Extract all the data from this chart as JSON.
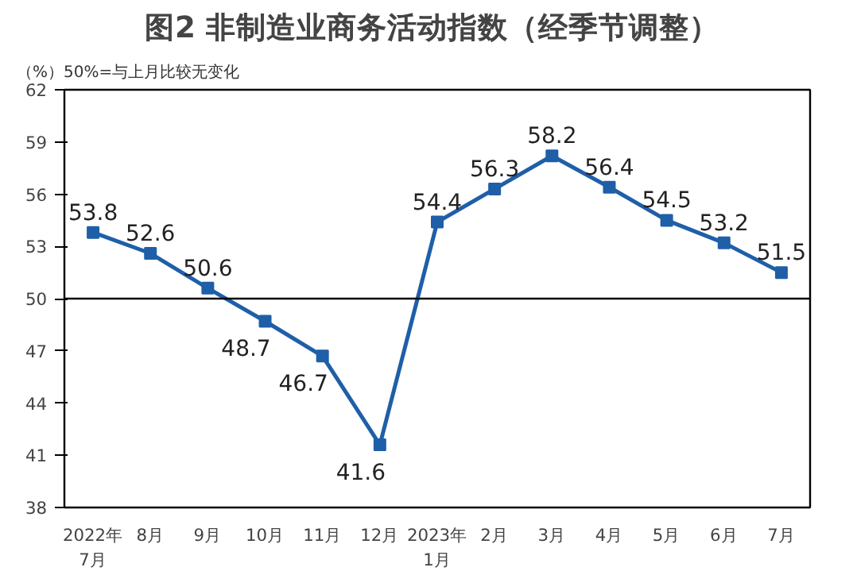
{
  "chart_data": {
    "type": "line",
    "title": "图2  非制造业商务活动指数（经季节调整）",
    "ylabel": "（%）50%=与上月比较无变化",
    "categories": [
      "2022年\n7月",
      "8月",
      "9月",
      "10月",
      "11月",
      "12月",
      "2023年\n1月",
      "2月",
      "3月",
      "4月",
      "5月",
      "6月",
      "7月"
    ],
    "series": [
      {
        "color": "#1f5fa8",
        "values": [
          53.8,
          52.6,
          50.6,
          48.7,
          46.7,
          41.6,
          54.4,
          56.3,
          58.2,
          56.4,
          54.5,
          53.2,
          51.5
        ]
      }
    ],
    "ylim": [
      38,
      62
    ],
    "yticks": [
      38,
      41,
      44,
      47,
      50,
      53,
      56,
      59,
      62
    ],
    "grid": false,
    "marker": "square",
    "line_style": "solid",
    "data_labels": true,
    "ref_lines": [
      {
        "axis": "y",
        "value": 50,
        "color": "#000000"
      }
    ]
  }
}
